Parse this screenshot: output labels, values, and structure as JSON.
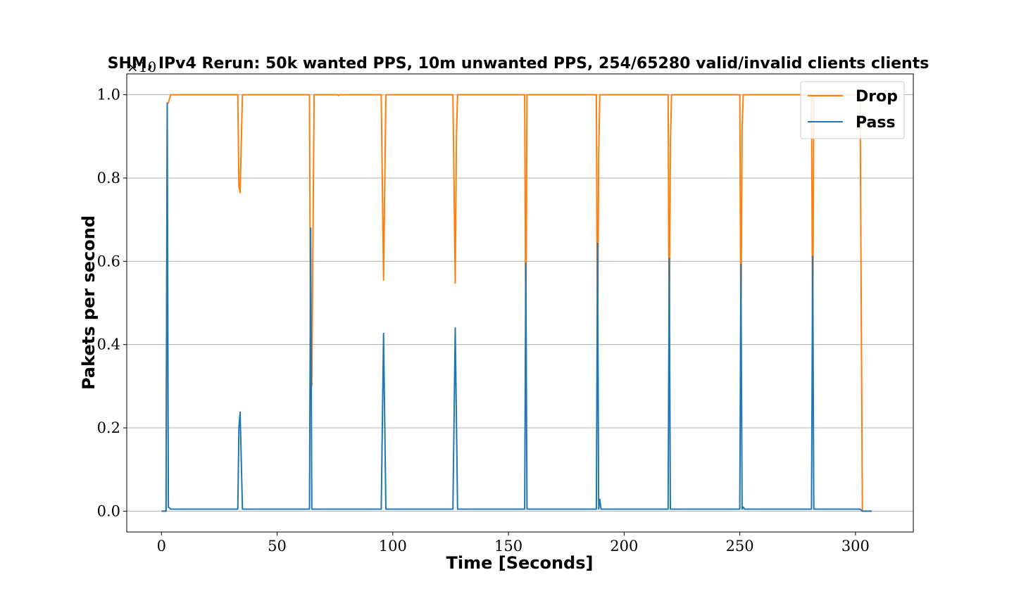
{
  "chart_data": {
    "type": "line",
    "title": "SHM, IPv4 Rerun: 50k wanted PPS, 10m unwanted PPS, 254/65280 valid/invalid clients clients",
    "xlabel": "Time [Seconds]",
    "ylabel": "Pakets per second",
    "y_offset_label": "×10",
    "xlim": [
      -15,
      325
    ],
    "ylim": [
      -0.05,
      1.05
    ],
    "x_ticks": [
      0,
      50,
      100,
      150,
      200,
      250,
      300
    ],
    "x_tick_labels": [
      "0",
      "50",
      "100",
      "150",
      "200",
      "250",
      "300"
    ],
    "y_ticks": [
      0.0,
      0.2,
      0.4,
      0.6,
      0.8,
      1.0
    ],
    "y_tick_labels": [
      "0.0",
      "0.2",
      "0.4",
      "0.6",
      "0.8",
      "1.0"
    ],
    "grid": "horizontal",
    "legend": "top-right",
    "series": [
      {
        "name": "Drop",
        "color": "#ff7f0e",
        "x": [
          0,
          2,
          2.5,
          3,
          4,
          33,
          33.5,
          34,
          35,
          64,
          64.5,
          65,
          66,
          76,
          76.5,
          77,
          95,
          96,
          97,
          126,
          127,
          127.5,
          128,
          157,
          157.5,
          158,
          159,
          188,
          188.5,
          189,
          189.5,
          190,
          219,
          219.5,
          220,
          220.5,
          221,
          250,
          250.5,
          251,
          251.5,
          252,
          281,
          281.5,
          282,
          282.5,
          283,
          302,
          303,
          307
        ],
        "y": [
          0.0,
          0.0,
          0.98,
          0.98,
          1.0,
          1.0,
          0.78,
          0.765,
          1.0,
          1.0,
          0.3,
          0.3,
          1.0,
          1.0,
          0.998,
          1.0,
          1.0,
          0.555,
          1.0,
          1.0,
          0.548,
          0.9,
          1.0,
          1.0,
          0.4,
          1.0,
          1.0,
          1.0,
          0.36,
          0.86,
          1.0,
          1.0,
          1.0,
          0.39,
          0.88,
          1.0,
          1.0,
          1.0,
          0.41,
          0.92,
          1.0,
          1.0,
          1.0,
          0.39,
          1.0,
          1.0,
          1.0,
          1.0,
          0.0,
          0.0
        ]
      },
      {
        "name": "Pass",
        "color": "#1f77b4",
        "x": [
          0,
          2,
          2.5,
          3,
          4,
          33,
          33.5,
          34,
          35,
          64,
          64.5,
          65,
          66,
          95,
          96,
          97,
          126,
          127,
          128,
          157,
          157.5,
          158,
          159,
          188,
          188.5,
          189,
          189.5,
          190,
          219,
          219.5,
          220,
          221,
          250,
          250.5,
          251,
          251.5,
          252,
          281,
          281.5,
          282,
          283,
          302,
          303,
          307
        ],
        "y": [
          0.0,
          0.0,
          0.98,
          0.01,
          0.005,
          0.005,
          0.2,
          0.238,
          0.005,
          0.005,
          0.68,
          0.005,
          0.005,
          0.005,
          0.427,
          0.005,
          0.005,
          0.44,
          0.005,
          0.005,
          0.595,
          0.005,
          0.005,
          0.005,
          0.643,
          0.005,
          0.028,
          0.005,
          0.005,
          0.607,
          0.005,
          0.005,
          0.005,
          0.593,
          0.005,
          0.01,
          0.005,
          0.005,
          0.612,
          0.005,
          0.005,
          0.005,
          0.0,
          0.0
        ]
      }
    ]
  }
}
